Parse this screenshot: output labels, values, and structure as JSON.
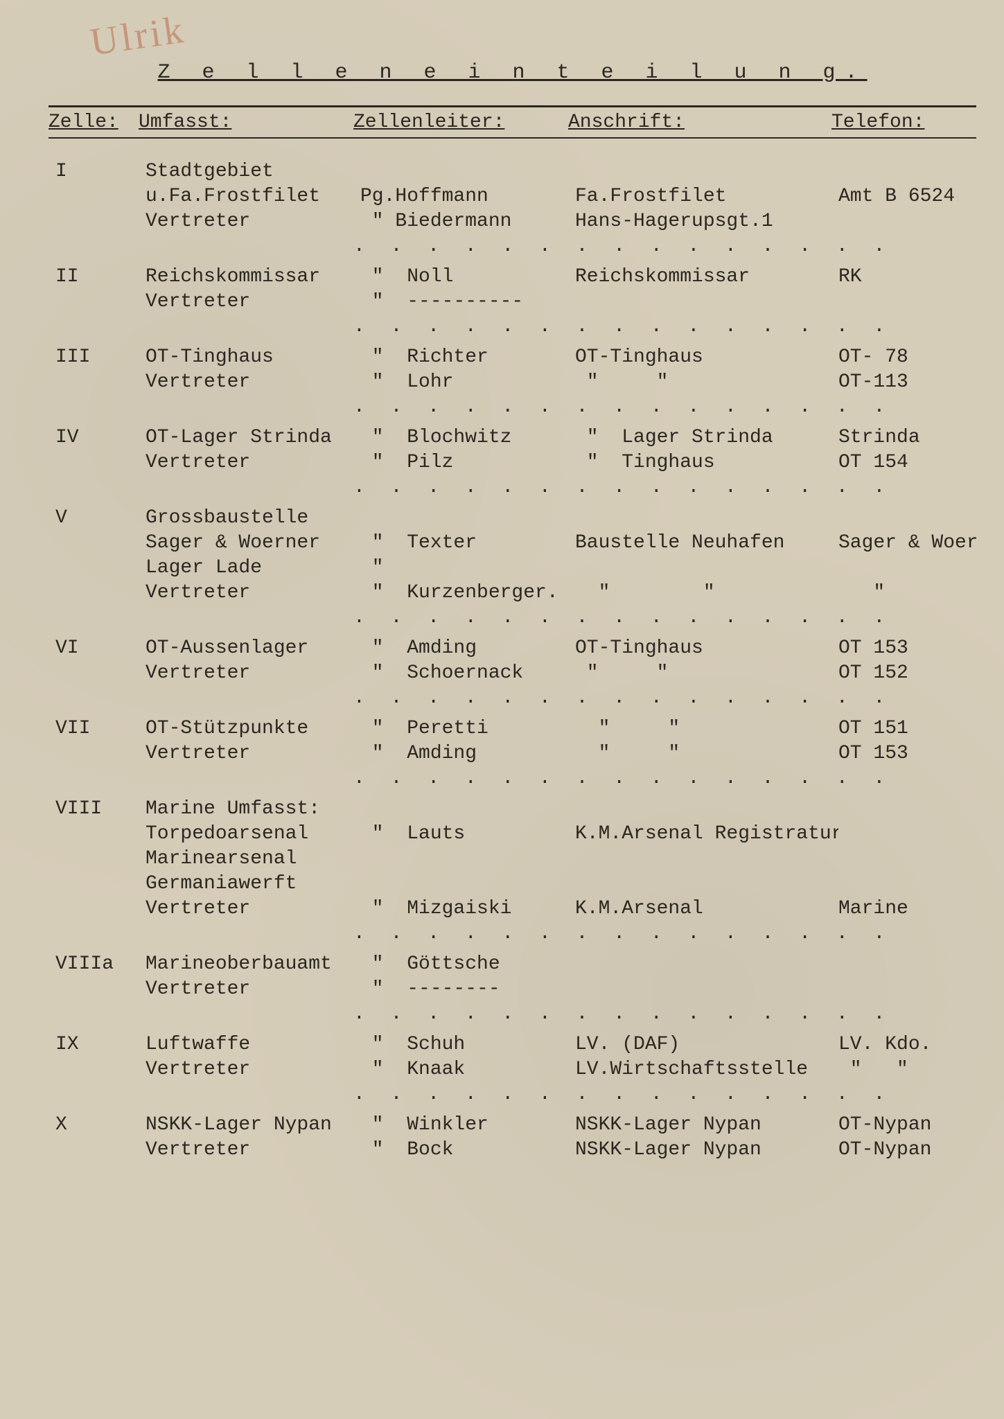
{
  "background_color": "#d6cdb9",
  "text_color": "#2a2720",
  "font_family": "Courier New",
  "annotation_text": "Ulrik",
  "title": "Z e l l e n e i n t e i l u n g.",
  "dots_sep": ". . . . . . . . . . . . . . .",
  "header": {
    "zelle": "Zelle:",
    "umfasst": "Umfasst:",
    "leiter": "Zellenleiter:",
    "anschrift": "Anschrift:",
    "telefon": "Telefon:"
  },
  "groups": [
    {
      "zelle": "I",
      "lines": [
        {
          "umf": "Stadtgebiet",
          "leit": "",
          "ans": "",
          "tel": ""
        },
        {
          "umf": "u.Fa.Frostfilet",
          "leit": "Pg.Hoffmann",
          "ans": "Fa.Frostfilet",
          "tel": "Amt B 6524"
        },
        {
          "umf": "Vertreter",
          "leit": " \" Biedermann",
          "ans": "Hans-Hagerupsgt.1",
          "tel": ""
        }
      ]
    },
    {
      "zelle": "II",
      "lines": [
        {
          "umf": "Reichskommissar",
          "leit": " \"  Noll",
          "ans": "Reichskommissar",
          "tel": "RK"
        },
        {
          "umf": "Vertreter",
          "leit": " \"  ----------",
          "ans": "",
          "tel": ""
        }
      ]
    },
    {
      "zelle": "III",
      "lines": [
        {
          "umf": "OT-Tinghaus",
          "leit": " \"  Richter",
          "ans": "OT-Tinghaus",
          "tel": "OT- 78"
        },
        {
          "umf": "Vertreter",
          "leit": " \"  Lohr",
          "ans": " \"     \"",
          "tel": "OT-113"
        }
      ]
    },
    {
      "zelle": "IV",
      "lines": [
        {
          "umf": "OT-Lager Strinda",
          "leit": " \"  Blochwitz",
          "ans": " \"  Lager Strinda",
          "tel": "Strinda"
        },
        {
          "umf": "Vertreter",
          "leit": " \"  Pilz",
          "ans": " \"  Tinghaus",
          "tel": "OT 154"
        }
      ]
    },
    {
      "zelle": "V",
      "lines": [
        {
          "umf": "Grossbaustelle",
          "leit": "",
          "ans": "",
          "tel": ""
        },
        {
          "umf": "Sager & Woerner",
          "leit": " \"  Texter",
          "ans": "Baustelle Neuhafen",
          "tel": "Sager & Woerner"
        },
        {
          "umf": "Lager Lade",
          "leit": " \"",
          "ans": "",
          "tel": ""
        },
        {
          "umf": "Vertreter",
          "leit": " \"  Kurzenberger.",
          "ans": "  \"        \"",
          "tel": "   \""
        }
      ]
    },
    {
      "zelle": "VI",
      "lines": [
        {
          "umf": "OT-Aussenlager",
          "leit": " \"  Amding",
          "ans": "OT-Tinghaus",
          "tel": "OT 153"
        },
        {
          "umf": "Vertreter",
          "leit": " \"  Schoernack",
          "ans": " \"     \"",
          "tel": "OT 152"
        }
      ]
    },
    {
      "zelle": "VII",
      "lines": [
        {
          "umf": "OT-Stützpunkte",
          "leit": " \"  Peretti",
          "ans": "  \"     \"",
          "tel": "OT 151"
        },
        {
          "umf": "Vertreter",
          "leit": " \"  Amding",
          "ans": "  \"     \"",
          "tel": "OT 153"
        }
      ]
    },
    {
      "zelle": "VIII",
      "lines": [
        {
          "umf": "Marine Umfasst:",
          "leit": "",
          "ans": "",
          "tel": ""
        },
        {
          "umf": "Torpedoarsenal",
          "leit": " \"  Lauts",
          "ans": "K.M.Arsenal Registratur",
          "tel": ""
        },
        {
          "umf": "Marinearsenal",
          "leit": "",
          "ans": "",
          "tel": ""
        },
        {
          "umf": "Germaniawerft",
          "leit": "",
          "ans": "",
          "tel": ""
        },
        {
          "umf": "Vertreter",
          "leit": " \"  Mizgaiski",
          "ans": "K.M.Arsenal",
          "tel": "Marine"
        }
      ]
    },
    {
      "zelle": "VIIIa",
      "lines": [
        {
          "umf": "Marineoberbauamt",
          "leit": " \"  Göttsche",
          "ans": "",
          "tel": ""
        },
        {
          "umf": "Vertreter",
          "leit": " \"  --------",
          "ans": "",
          "tel": ""
        }
      ]
    },
    {
      "zelle": "IX",
      "lines": [
        {
          "umf": "Luftwaffe",
          "leit": " \"  Schuh",
          "ans": "LV. (DAF)",
          "tel": "LV. Kdo."
        },
        {
          "umf": "Vertreter",
          "leit": " \"  Knaak",
          "ans": "LV.Wirtschaftsstelle",
          "tel": " \"   \""
        }
      ]
    },
    {
      "zelle": "X",
      "no_sep": true,
      "lines": [
        {
          "umf": "NSKK-Lager Nypan",
          "leit": " \"  Winkler",
          "ans": "NSKK-Lager Nypan",
          "tel": "OT-Nypan"
        },
        {
          "umf": "Vertreter",
          "leit": " \"  Bock",
          "ans": "NSKK-Lager Nypan",
          "tel": "OT-Nypan"
        }
      ]
    }
  ]
}
